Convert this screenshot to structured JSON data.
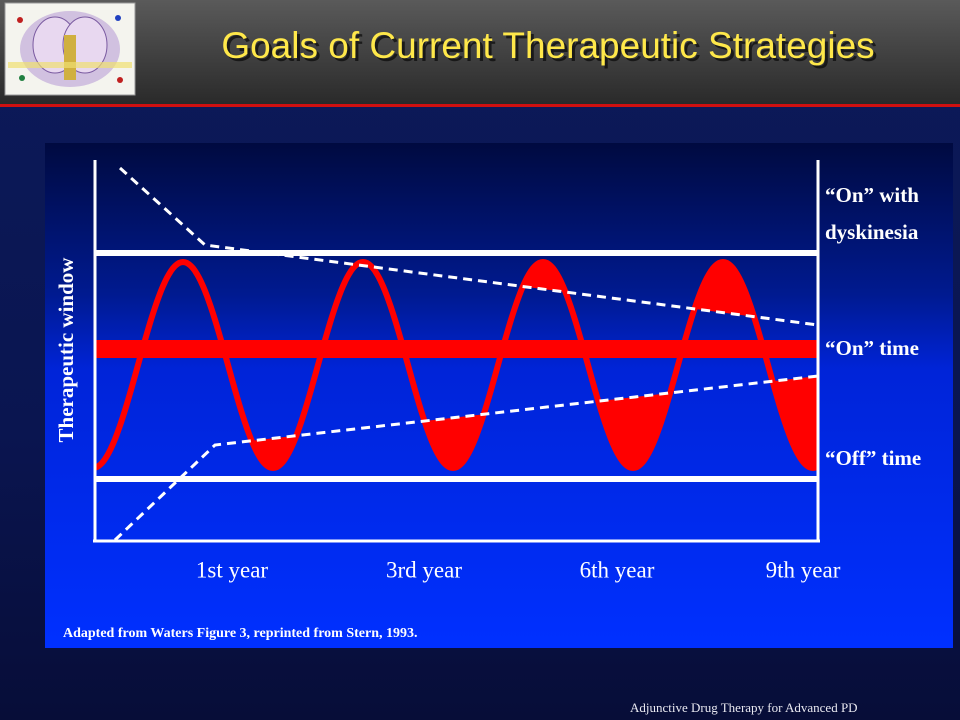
{
  "header": {
    "title": "Goals of Current Therapeutic Strategies"
  },
  "figure": {
    "y_axis_label": "Therapeutic window",
    "zone_labels": [
      "“On” with",
      "dyskinesia",
      "“On” time",
      "“Off” time"
    ],
    "x_labels": [
      "1st year",
      "3rd year",
      "6th year",
      "9th year"
    ],
    "source": "Adapted from Waters Figure 3, reprinted from Stern, 1993."
  },
  "footer": {
    "text": "Adjunctive Drug Therapy for Advanced PD"
  }
}
